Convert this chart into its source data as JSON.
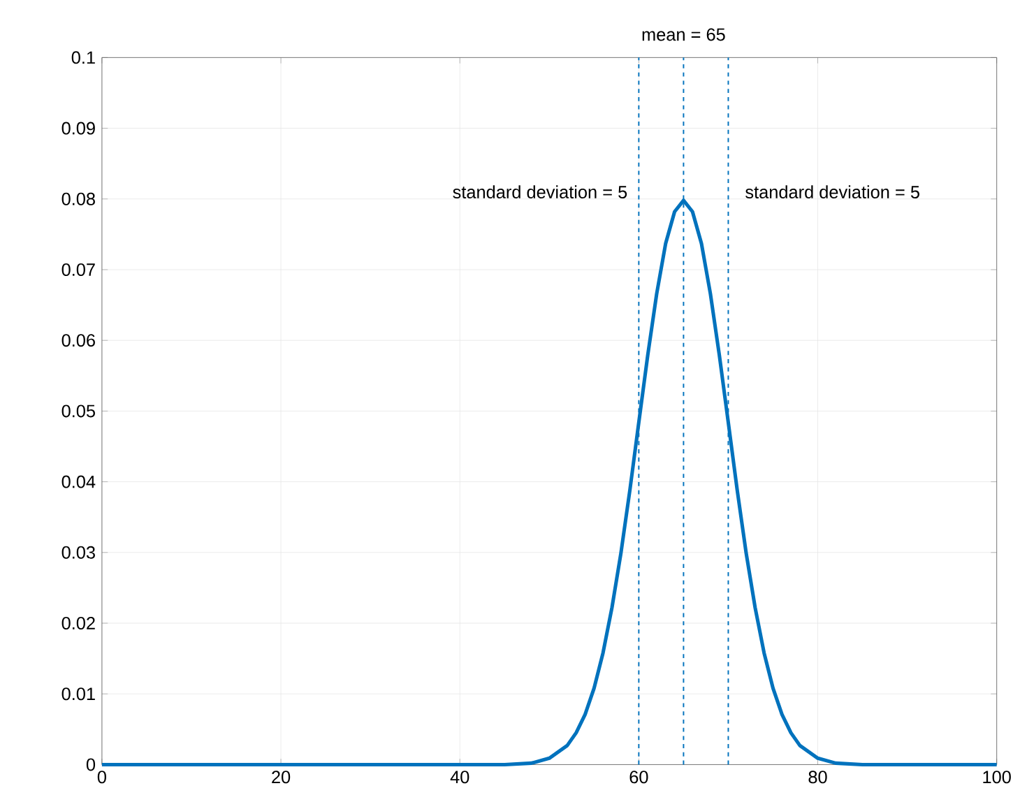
{
  "chart_data": {
    "type": "line",
    "xlim": [
      0,
      100
    ],
    "ylim": [
      0,
      0.1
    ],
    "xticks": [
      0,
      20,
      40,
      60,
      80,
      100
    ],
    "yticks": [
      0,
      0.01,
      0.02,
      0.03,
      0.04,
      0.05,
      0.06,
      0.07,
      0.08,
      0.09,
      0.1
    ],
    "grid": true,
    "marker": "none",
    "line_style": "solid",
    "series": [
      {
        "color": "#0072bd",
        "x": [
          0,
          10,
          20,
          30,
          40,
          45,
          48,
          50,
          52,
          53,
          54,
          55,
          56,
          57,
          58,
          59,
          60,
          61,
          62,
          63,
          64,
          65,
          66,
          67,
          68,
          69,
          70,
          71,
          72,
          73,
          74,
          75,
          76,
          77,
          78,
          80,
          82,
          85,
          90,
          100
        ],
        "values": [
          0,
          0,
          0,
          0,
          0,
          0.0,
          0.0002,
          0.0009,
          0.0027,
          0.0045,
          0.0071,
          0.0108,
          0.0158,
          0.0222,
          0.0299,
          0.0388,
          0.0484,
          0.0579,
          0.0666,
          0.0737,
          0.0782,
          0.0798,
          0.0782,
          0.0737,
          0.0666,
          0.0579,
          0.0484,
          0.0388,
          0.0299,
          0.0222,
          0.0158,
          0.0108,
          0.0071,
          0.0045,
          0.0027,
          0.0009,
          0.0002,
          0,
          0,
          0
        ]
      }
    ],
    "ref_lines": [
      {
        "axis": "x",
        "value": 60,
        "color": "#0072bd",
        "line_style": "dashed"
      },
      {
        "axis": "x",
        "value": 65,
        "label": "mean = 65",
        "color": "#0072bd",
        "line_style": "dashed"
      },
      {
        "axis": "x",
        "value": 70,
        "color": "#0072bd",
        "line_style": "dashed"
      }
    ],
    "annotations": [
      "standard deviation = 5",
      "standard deviation = 5"
    ]
  }
}
